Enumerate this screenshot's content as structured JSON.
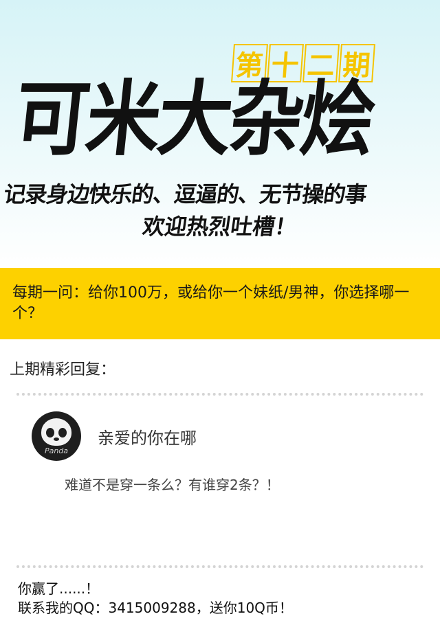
{
  "header": {
    "issue_chars": [
      "第",
      "十",
      "二",
      "期"
    ],
    "title": "可米大杂烩",
    "subtitle_line1": "记录身边快乐的、逗逼的、无节操的事",
    "subtitle_line2": "欢迎热烈吐槽！",
    "colors": {
      "background_top": "#d6f3f7",
      "issue_accent": "#f5c400"
    }
  },
  "question": {
    "text": "每期一问：给你100万，或给你一个妹纸/男神，你选择哪一个？",
    "background": "#fdd100"
  },
  "previous": {
    "label": "上期精彩回复：",
    "comment": {
      "avatar_icon": "panda-avatar-icon",
      "avatar_text": "Panda",
      "username": "亲爱的你在哪",
      "text": "难道不是穿一条么？有谁穿2条？！"
    }
  },
  "footer": {
    "line1": "你赢了......！",
    "line2": "联系我的QQ：3415009288，送你10Q币！"
  }
}
